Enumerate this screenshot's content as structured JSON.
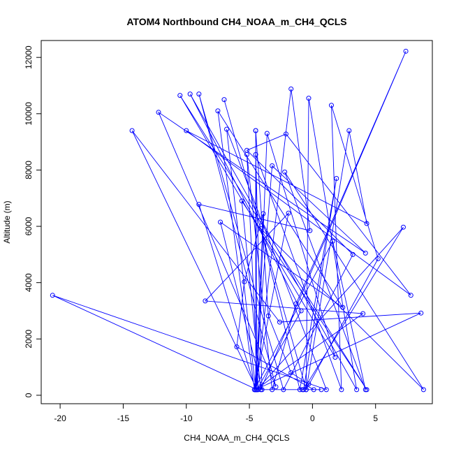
{
  "chart_data": {
    "type": "scatter",
    "title": "ATOM4 Northbound CH4_NOAA_m_CH4_QCLS",
    "xlabel": "CH4_NOAA_m_CH4_QCLS",
    "ylabel": "Altitude (m)",
    "xlim": [
      -21.5,
      9.5
    ],
    "ylim": [
      -300,
      12600
    ],
    "xticks": [
      -20,
      -15,
      -10,
      -5,
      0,
      5
    ],
    "yticks": [
      0,
      2000,
      4000,
      6000,
      8000,
      10000,
      12000
    ],
    "grid": false,
    "legend": "none",
    "connect_points": true,
    "colors": {
      "series": "#0000ff",
      "axis": "#000000"
    },
    "series": [
      {
        "points": [
          [
            -7.0,
            10500
          ],
          [
            -0.5,
            200
          ],
          [
            2.9,
            9400
          ],
          [
            4.3,
            6100
          ],
          [
            -10.0,
            9400
          ],
          [
            7.8,
            3550
          ],
          [
            -2.1,
            9280
          ],
          [
            -5.2,
            8700
          ],
          [
            3.2,
            5000
          ],
          [
            -2.3,
            200
          ],
          [
            -9.0,
            10700
          ],
          [
            -2.9,
            300
          ],
          [
            -12.2,
            10050
          ],
          [
            4.2,
            5050
          ],
          [
            -3.2,
            8150
          ],
          [
            -4.6,
            200
          ],
          [
            -7.5,
            10100
          ],
          [
            2.4,
            3120
          ],
          [
            -7.3,
            6150
          ],
          [
            -4.0,
            200
          ],
          [
            -4.5,
            8550
          ],
          [
            2.3,
            200
          ],
          [
            1.5,
            10300
          ],
          [
            5.2,
            4850
          ],
          [
            -0.5,
            200
          ],
          [
            -0.3,
            10550
          ],
          [
            3.5,
            200
          ],
          [
            -9.7,
            10700
          ],
          [
            -0.9,
            3000
          ],
          [
            -4.4,
            200
          ],
          [
            -14.3,
            9400
          ],
          [
            -2.6,
            2600
          ],
          [
            8.6,
            2920
          ],
          [
            -4.5,
            200
          ],
          [
            -4.5,
            9400
          ],
          [
            -4.5,
            200
          ],
          [
            -1.7,
            10880
          ],
          [
            -0.2,
            5850
          ],
          [
            -9.0,
            6780
          ],
          [
            -4.5,
            200
          ],
          [
            -6.8,
            9450
          ],
          [
            1.1,
            200
          ],
          [
            -20.6,
            3550
          ],
          [
            -4.4,
            200
          ],
          [
            -3.6,
            9300
          ],
          [
            1.8,
            1350
          ],
          [
            -10.5,
            10650
          ],
          [
            4.3,
            200
          ],
          [
            -5.6,
            6900
          ],
          [
            -4.1,
            200
          ],
          [
            7.4,
            12220
          ],
          [
            -1.3,
            3250
          ],
          [
            -3.2,
            200
          ],
          [
            -5.2,
            8550
          ],
          [
            -4.3,
            200
          ],
          [
            0.1,
            200
          ],
          [
            -6.0,
            1720
          ],
          [
            -5.4,
            4030
          ],
          [
            -3.9,
            6450
          ],
          [
            -4.5,
            200
          ],
          [
            4.0,
            2900
          ],
          [
            -8.5,
            3350
          ],
          [
            -1.9,
            6470
          ],
          [
            -4.6,
            200
          ],
          [
            1.6,
            5470
          ],
          [
            4.2,
            200
          ],
          [
            -2.2,
            7930
          ],
          [
            8.8,
            200
          ],
          [
            -4.1,
            5920
          ],
          [
            -1.0,
            200
          ],
          [
            1.9,
            7700
          ],
          [
            -0.7,
            200
          ],
          [
            7.2,
            5970
          ],
          [
            -4.4,
            200
          ],
          [
            -4.5,
            9400
          ],
          [
            -3.5,
            2820
          ],
          [
            -1.7,
            800
          ],
          [
            -0.3,
            400
          ],
          [
            -0.8,
            200
          ],
          [
            0.7,
            200
          ]
        ]
      }
    ]
  }
}
